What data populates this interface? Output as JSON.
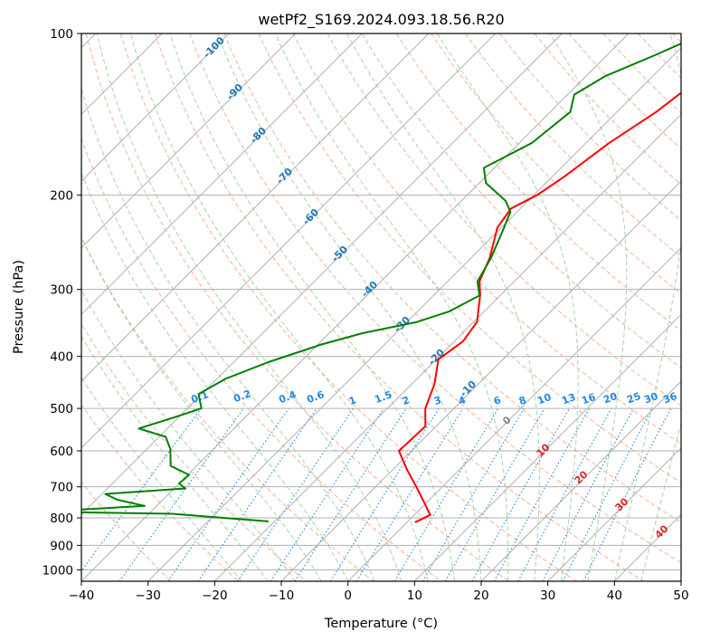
{
  "chart_data": {
    "type": "line",
    "title": "wetPf2_S169.2024.093.18.56.R20",
    "xlabel": "Temperature (°C)",
    "ylabel": "Pressure (hPa)",
    "xlim": [
      -40,
      50
    ],
    "ylim": [
      1050,
      100
    ],
    "y_scale": "log",
    "grid": true,
    "x_ticks": [
      -40,
      -30,
      -20,
      -10,
      0,
      10,
      20,
      30,
      40,
      50
    ],
    "x_tick_labels": [
      "−40",
      "−30",
      "−20",
      "−10",
      "0",
      "10",
      "20",
      "30",
      "40",
      "50"
    ],
    "y_ticks": [
      100,
      200,
      300,
      400,
      500,
      600,
      700,
      800,
      900,
      1000
    ],
    "y_tick_labels": [
      "100",
      "200",
      "300",
      "400",
      "500",
      "600",
      "700",
      "800",
      "900",
      "1000"
    ],
    "skew": 45,
    "series": [
      {
        "color": "#ff0000",
        "points": [
          [
            -21.3,
            100
          ],
          [
            -21.5,
            104
          ],
          [
            -22.0,
            110
          ],
          [
            -22.9,
            118
          ],
          [
            -22.9,
            125
          ],
          [
            -24.1,
            140
          ],
          [
            -26.5,
            160
          ],
          [
            -28.2,
            185
          ],
          [
            -29.5,
            200
          ],
          [
            -31.4,
            212
          ],
          [
            -30.6,
            230
          ],
          [
            -27.2,
            262
          ],
          [
            -25.2,
            290
          ],
          [
            -23.1,
            307
          ],
          [
            -19.5,
            345
          ],
          [
            -18.7,
            375
          ],
          [
            -19.7,
            405
          ],
          [
            -16.6,
            450
          ],
          [
            -14.3,
            500
          ],
          [
            -11.6,
            540
          ],
          [
            -11.9,
            600
          ],
          [
            -7.9,
            650
          ],
          [
            -3.9,
            700
          ],
          [
            0.4,
            760
          ],
          [
            2.4,
            790
          ],
          [
            1.5,
            810
          ],
          [
            1.2,
            815
          ]
        ]
      },
      {
        "color": "#008000",
        "points": [
          [
            -28.7,
            100
          ],
          [
            -32.9,
            110
          ],
          [
            -37.1,
            120
          ],
          [
            -39.0,
            130
          ],
          [
            -37.0,
            140
          ],
          [
            -38.1,
            160
          ],
          [
            -41.6,
            178
          ],
          [
            -39.0,
            190
          ],
          [
            -33.4,
            205
          ],
          [
            -31.0,
            215
          ],
          [
            -29.6,
            230
          ],
          [
            -27.0,
            262
          ],
          [
            -25.5,
            290
          ],
          [
            -23.1,
            308
          ],
          [
            -25.3,
            330
          ],
          [
            -28.5,
            345
          ],
          [
            -35.0,
            362
          ],
          [
            -39.5,
            380
          ],
          [
            -44.8,
            410
          ],
          [
            -48.7,
            440
          ],
          [
            -50.5,
            470
          ],
          [
            -47.9,
            500
          ],
          [
            -50.7,
            520
          ],
          [
            -54.3,
            545
          ],
          [
            -49.0,
            565
          ],
          [
            -46.5,
            595
          ],
          [
            -43.9,
            640
          ],
          [
            -39.8,
            665
          ],
          [
            -40.0,
            690
          ],
          [
            -38.3,
            705
          ],
          [
            -49.5,
            722
          ],
          [
            -46.8,
            740
          ],
          [
            -41.8,
            760
          ],
          [
            -54.9,
            777
          ],
          [
            -54.0,
            780
          ],
          [
            -36.5,
            786
          ],
          [
            -20.9,
            812
          ]
        ]
      }
    ],
    "annotations": {
      "dry_adiabat_labels": [
        "-100",
        "-90",
        "-80",
        "-70",
        "-60",
        "-50",
        "-40",
        "-30",
        "-20",
        "-10"
      ],
      "mixing_ratio_labels": [
        "0.1",
        "0.2",
        "0.4",
        "0.6",
        "1",
        "1.5",
        "2",
        "3",
        "4",
        "6",
        "8",
        "10",
        "13",
        "16",
        "20",
        "25",
        "30",
        "36"
      ],
      "moist_adiabat_labels": [
        "0",
        "10",
        "20",
        "30",
        "40"
      ]
    },
    "colors": {
      "temperature": "#ff0000",
      "dewpoint": "#008000",
      "dry_adiabat": "#f4a582",
      "moist_adiabat": "#8fc98f",
      "mixing_ratio": "#1f88e5",
      "dry_adiabat_label": "#1f77b4",
      "moist_adiabat_label": "#d62728",
      "grid": "#b0b0b0"
    }
  }
}
